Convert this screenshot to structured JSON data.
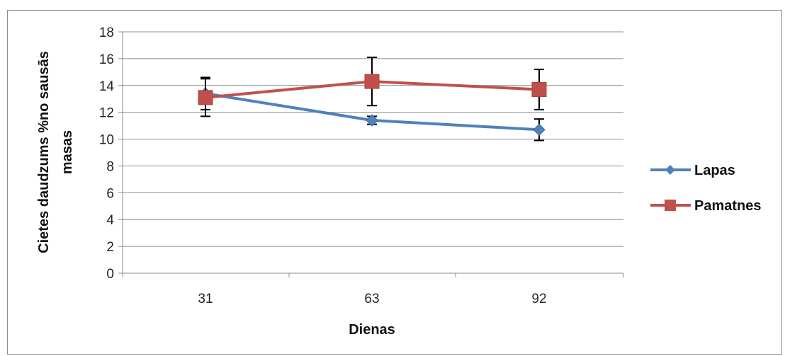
{
  "chart_data": {
    "type": "line",
    "title": "",
    "xlabel": "Dienas",
    "ylabel_lines": [
      "Cietes daudzums %no sausās",
      "masas"
    ],
    "categories": [
      "31",
      "63",
      "92"
    ],
    "ylim": [
      0,
      18
    ],
    "yticks": [
      0,
      2,
      4,
      6,
      8,
      10,
      12,
      14,
      16,
      18
    ],
    "grid": true,
    "legend_position": "right",
    "series": [
      {
        "name": "Lapas",
        "color": "#4f81bd",
        "marker": "diamond",
        "values": [
          13.4,
          11.4,
          10.7
        ],
        "error": [
          1.2,
          0.3,
          0.8
        ]
      },
      {
        "name": "Pamatnes",
        "color": "#c0504d",
        "marker": "square",
        "values": [
          13.1,
          14.3,
          13.7
        ],
        "error": [
          1.4,
          1.8,
          1.5
        ]
      }
    ]
  }
}
